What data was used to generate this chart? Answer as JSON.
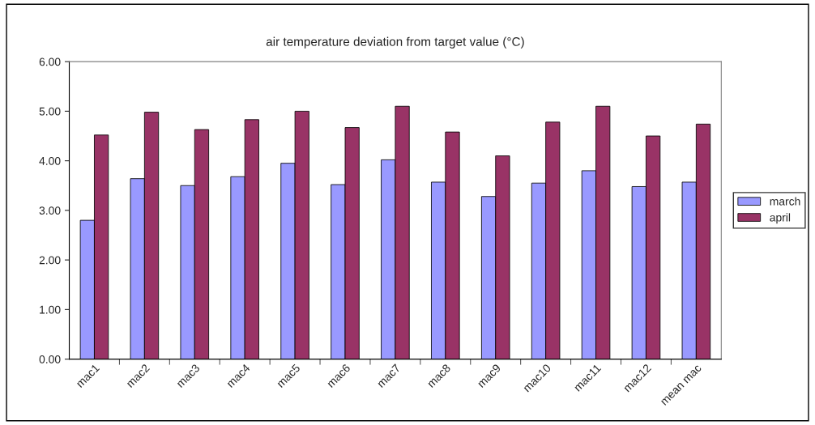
{
  "chart_data": {
    "type": "bar",
    "title": "air temperature deviation from target value (°C)",
    "categories": [
      "mac1",
      "mac2",
      "mac3",
      "mac4",
      "mac5",
      "mac6",
      "mac7",
      "mac8",
      "mac9",
      "mac10",
      "mac11",
      "mac12",
      "mean mac"
    ],
    "series": [
      {
        "name": "march",
        "color": "#9999ff",
        "values": [
          2.8,
          3.64,
          3.5,
          3.68,
          3.95,
          3.52,
          4.02,
          3.57,
          3.28,
          3.55,
          3.8,
          3.48,
          3.57
        ]
      },
      {
        "name": "april",
        "color": "#993366",
        "values": [
          4.52,
          4.98,
          4.63,
          4.83,
          5.0,
          4.67,
          5.1,
          4.58,
          4.1,
          4.78,
          5.1,
          4.5,
          4.74
        ]
      }
    ],
    "ylim": [
      0,
      6
    ],
    "yticks": [
      {
        "value": 0,
        "label": "0.00"
      },
      {
        "value": 1,
        "label": "1.00"
      },
      {
        "value": 2,
        "label": "2.00"
      },
      {
        "value": 3,
        "label": "3.00"
      },
      {
        "value": 4,
        "label": "4.00"
      },
      {
        "value": 5,
        "label": "5.00"
      },
      {
        "value": 6,
        "label": "6.00"
      }
    ],
    "grid": false,
    "legend": "right"
  }
}
